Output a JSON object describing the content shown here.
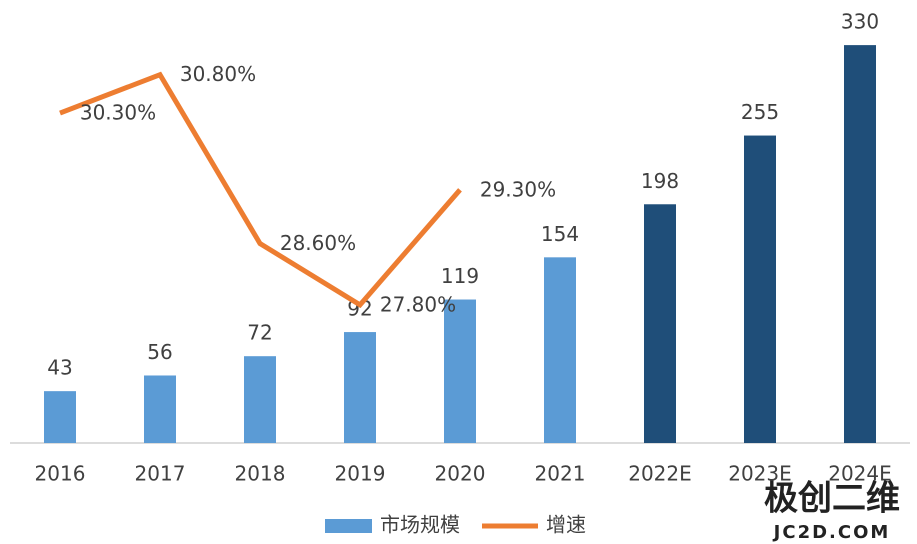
{
  "chart_data": {
    "type": "bar-line",
    "categories": [
      "2016",
      "2017",
      "2018",
      "2019",
      "2020",
      "2021",
      "2022E",
      "2023E",
      "2024E"
    ],
    "series": [
      {
        "name": "市场规模",
        "type": "bar",
        "color": "#5b9bd5",
        "colors": [
          "#5b9bd5",
          "#5b9bd5",
          "#5b9bd5",
          "#5b9bd5",
          "#5b9bd5",
          "#5b9bd5",
          "#1f4e79",
          "#1f4e79",
          "#1f4e79"
        ],
        "values": [
          43,
          56,
          72,
          92,
          119,
          154,
          198,
          255,
          330
        ]
      },
      {
        "name": "增速",
        "type": "line",
        "color": "#ed7d31",
        "axis": "y2",
        "values": [
          30.3,
          30.8,
          28.6,
          27.8,
          29.3,
          null,
          null,
          null,
          null
        ],
        "value_labels": [
          "30.30%",
          "30.80%",
          "28.60%",
          "27.80%",
          "29.30%",
          null,
          null,
          null,
          null
        ]
      }
    ],
    "ylim": [
      0,
      350
    ],
    "y2lim": [
      26,
      31.5
    ],
    "legend": "bottom",
    "watermark": [
      "极创二维",
      "JC2D.COM"
    ]
  }
}
